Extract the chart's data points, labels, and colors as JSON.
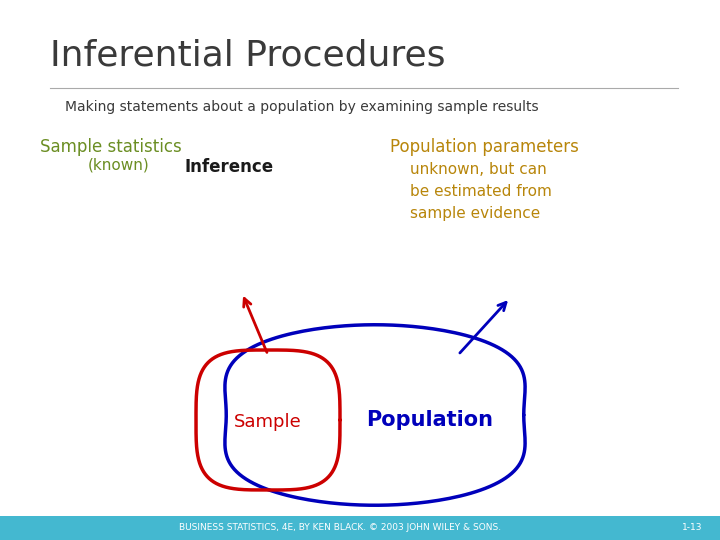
{
  "title": "Inferential Procedures",
  "subtitle": "Making statements about a population by examining sample results",
  "sample_stats_label": "Sample statistics",
  "sample_stats_sub": "(known)",
  "inference_label": "Inference",
  "pop_params_label": "Population parameters",
  "pop_params_sub": "unknown, but can\nbe estimated from\nsample evidence",
  "sample_circle_label": "Sample",
  "population_circle_label": "Population",
  "footer": "BUSINESS STATISTICS, 4E, BY KEN BLACK. © 2003 JOHN WILEY & SONS.",
  "footer_right": "1-13",
  "title_color": "#3a3a3a",
  "subtitle_color": "#3a3a3a",
  "sample_stats_color": "#6B8E23",
  "pop_params_color": "#B8860B",
  "inference_color": "#1a1a1a",
  "sample_circle_color": "#CC0000",
  "population_circle_color": "#0000BB",
  "population_label_color": "#0000BB",
  "sample_label_color": "#CC0000",
  "footer_bg": "#44b8d0",
  "bg_color": "#ffffff",
  "title_fontsize": 26,
  "subtitle_fontsize": 10,
  "label_fontsize": 12,
  "inference_fontsize": 12,
  "diagram_label_fontsize": 12,
  "pop_diagram_label_fontsize": 15,
  "footer_fontsize": 6.5
}
